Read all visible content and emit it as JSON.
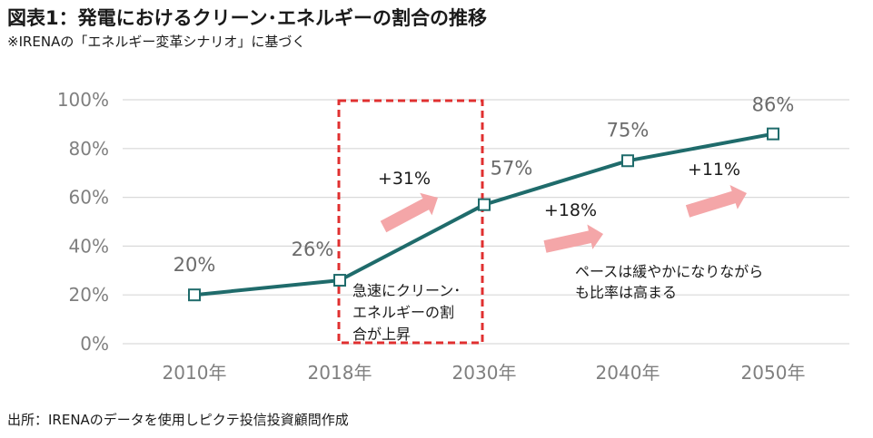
{
  "title": "図表1：発電におけるクリーン･エネルギーの割合の推移",
  "subtitle": "※IRENAの「エネルギー変革シナリオ」に基づく",
  "source": "出所：IRENAのデータを使用しピクテ投信投資顧問作成",
  "colors": {
    "line": "#1f6b6b",
    "arrow": "#f4a6a8",
    "box": "#e03030",
    "grid": "#d9d9d9",
    "axis": "#7f7f7f"
  },
  "chart_data": {
    "type": "line",
    "categories": [
      "2010年",
      "2018年",
      "2030年",
      "2040年",
      "2050年"
    ],
    "values": [
      20,
      26,
      57,
      75,
      86
    ],
    "data_labels": [
      "20%",
      "26%",
      "57%",
      "75%",
      "86%"
    ],
    "ylim": [
      0,
      100
    ],
    "yticks": [
      0,
      20,
      40,
      60,
      80,
      100
    ],
    "ytick_labels": [
      "0%",
      "20%",
      "40%",
      "60%",
      "80%",
      "100%"
    ],
    "marker": "open-square",
    "grid": true,
    "growth_annotations": [
      "+31%",
      "+18%",
      "+11%"
    ],
    "highlight_box_text": [
      "急速にクリーン･",
      "エネルギーの割",
      "合が上昇"
    ],
    "note_text": [
      "ペースは緩やかになりながら",
      "も比率は高まる"
    ]
  }
}
